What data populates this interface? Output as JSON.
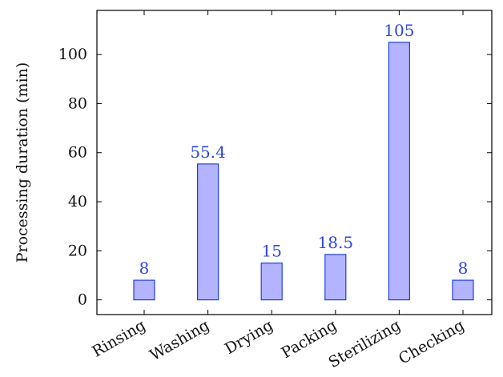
{
  "chart_data": {
    "type": "bar",
    "title": "",
    "xlabel": "",
    "ylabel": "Processing duration (min)",
    "categories": [
      "Rinsing",
      "Washing",
      "Drying",
      "Packing",
      "Sterilizing",
      "Checking"
    ],
    "values": [
      8,
      55.4,
      15,
      18.5,
      105,
      8
    ],
    "data_labels": [
      "8",
      "55.4",
      "15",
      "18.5",
      "105",
      "8"
    ],
    "ylim": [
      -6,
      118
    ],
    "yticks": [
      0,
      20,
      40,
      60,
      80,
      100
    ],
    "ytick_labels": [
      "0",
      "20",
      "40",
      "60",
      "80",
      "100"
    ],
    "x_tick_rotation": -30,
    "grid": false,
    "bar_fill": "#b3b3ff",
    "bar_stroke": "#1f3fe0",
    "label_color": "#2a45e8",
    "axis_color": "#000000"
  }
}
